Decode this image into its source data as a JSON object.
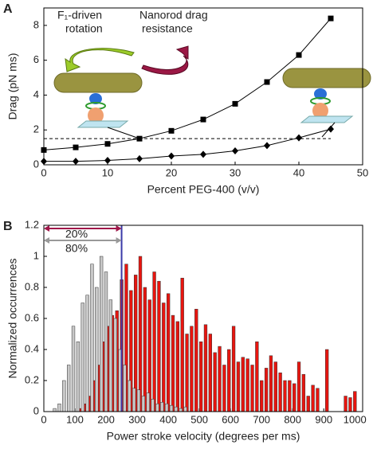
{
  "chart_data": [
    {
      "type": "line",
      "panel_label": "A",
      "x_label": "Percent PEG-400 (v/v)",
      "y_label": "Drag (pN ms)",
      "x": [
        0,
        5,
        10,
        15,
        20,
        25,
        30,
        35,
        40,
        45
      ],
      "series": [
        {
          "color": "#000000",
          "marker": "square",
          "values": [
            0.85,
            1.0,
            1.2,
            1.5,
            1.95,
            2.6,
            3.5,
            4.75,
            6.3,
            8.4
          ]
        },
        {
          "color": "#000000",
          "marker": "diamond",
          "values": [
            0.2,
            0.2,
            0.25,
            0.35,
            0.5,
            0.6,
            0.8,
            1.1,
            1.55,
            2.05
          ]
        }
      ],
      "hline": 1.5,
      "annotations": [
        {
          "text": "F₁-driven",
          "color": "#2e8b2e"
        },
        {
          "text": "rotation",
          "color": "#2e8b2e"
        },
        {
          "text": "Nanorod drag",
          "color": "#9b1845"
        },
        {
          "text": "resistance",
          "color": "#9b1845"
        }
      ],
      "xlim": [
        0,
        50
      ],
      "xticks": [
        0,
        10,
        20,
        30,
        40,
        50
      ],
      "ylim": [
        0,
        9
      ],
      "yticks": [
        0,
        2,
        4,
        6,
        8
      ]
    },
    {
      "type": "histogram",
      "panel_label": "B",
      "x_label": "Power stroke velocity (degrees per ms)",
      "y_label": "Normalized occurrences",
      "bins": [
        0,
        15,
        30,
        45,
        60,
        75,
        90,
        105,
        120,
        135,
        150,
        165,
        180,
        195,
        210,
        225,
        240,
        255,
        270,
        285,
        300,
        315,
        330,
        345,
        360,
        375,
        390,
        405,
        420,
        435,
        450,
        465,
        480,
        495,
        510,
        525,
        540,
        555,
        570,
        585,
        600,
        615,
        630,
        645,
        660,
        675,
        690,
        705,
        720,
        735,
        750,
        765,
        780,
        795,
        810,
        825,
        840,
        855,
        870,
        885,
        900,
        915,
        930,
        945,
        960,
        975,
        990,
        1005,
        1020
      ],
      "series": [
        {
          "color": "#e8150f",
          "values": [
            0,
            0,
            0,
            0,
            0,
            0,
            0,
            0.02,
            0.05,
            0.1,
            0.2,
            0.3,
            0.45,
            0.55,
            0.62,
            0.65,
            0.85,
            0.95,
            0.78,
            0.88,
            1.0,
            0.8,
            0.72,
            0.9,
            0.84,
            0.7,
            0.76,
            0.62,
            0.58,
            0.86,
            0.5,
            0.55,
            0.66,
            0.45,
            0.56,
            0.5,
            0.38,
            0.42,
            0.3,
            0.4,
            0.55,
            0.32,
            0.35,
            0.34,
            0.3,
            0.45,
            0.2,
            0.28,
            0.36,
            0.32,
            0.25,
            0.2,
            0.2,
            0.18,
            0.32,
            0.24,
            0.1,
            0.17,
            0.15,
            0,
            0.4,
            0,
            0,
            0,
            0.1,
            0.09,
            0.13,
            0
          ]
        },
        {
          "color": "#c8c8c8",
          "values": [
            0,
            0,
            0.02,
            0.05,
            0.2,
            0.3,
            0.55,
            0.45,
            0.7,
            0.75,
            0.95,
            0.8,
            1.0,
            0.9,
            0.72,
            0.6,
            0.4,
            0.3,
            0.2,
            0.15,
            0.14,
            0.1,
            0.12,
            0.08,
            0.05,
            0.06,
            0.05,
            0.04,
            0.03,
            0.02,
            0.03,
            0,
            0,
            0,
            0,
            0,
            0,
            0,
            0,
            0,
            0,
            0,
            0,
            0,
            0,
            0,
            0,
            0,
            0,
            0,
            0,
            0,
            0,
            0,
            0,
            0,
            0,
            0,
            0,
            0,
            0,
            0,
            0,
            0,
            0,
            0,
            0,
            0
          ]
        }
      ],
      "vline": {
        "value": 250,
        "color": "#3a3aa8"
      },
      "annotations": [
        {
          "text": "20%",
          "color": "#a0174a"
        },
        {
          "text": "80%",
          "color": "#999999"
        }
      ],
      "xlim": [
        0,
        1025
      ],
      "xticks": [
        0,
        100,
        200,
        300,
        400,
        500,
        600,
        700,
        800,
        900,
        1000
      ],
      "ylim": [
        0,
        1.2
      ],
      "yticks": [
        0,
        0.2,
        0.4,
        0.6,
        0.8,
        1,
        1.2
      ]
    }
  ]
}
